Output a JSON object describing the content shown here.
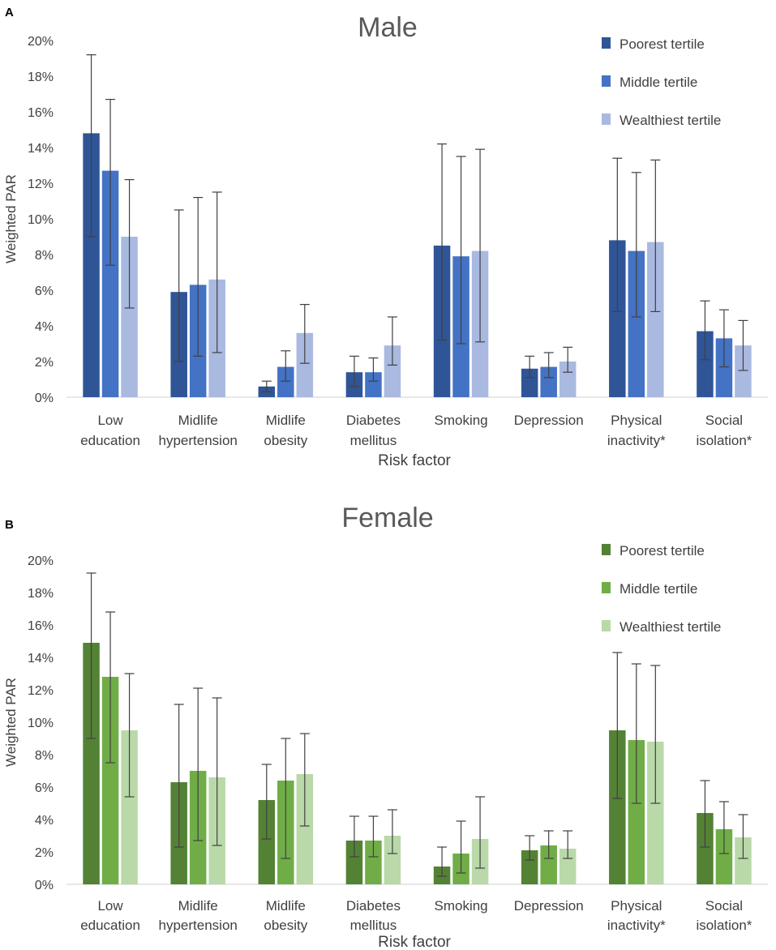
{
  "chart_data": [
    {
      "type": "bar",
      "panel_label": "A",
      "title": "Male",
      "xlabel": "Risk factor",
      "ylabel": "Weighted PAR",
      "ylim": [
        0,
        20
      ],
      "yticks": [
        "0%",
        "2%",
        "4%",
        "6%",
        "8%",
        "10%",
        "12%",
        "14%",
        "16%",
        "18%",
        "20%"
      ],
      "grid": false,
      "legend_position": "top-right",
      "categories": [
        [
          "Low",
          "education"
        ],
        [
          "Midlife",
          "hypertension"
        ],
        [
          "Midlife",
          "obesity"
        ],
        [
          "Diabetes",
          "mellitus"
        ],
        [
          "Smoking"
        ],
        [
          "Depression"
        ],
        [
          "Physical",
          "inactivity*"
        ],
        [
          "Social",
          "isolation*"
        ]
      ],
      "series": [
        {
          "name": "Poorest tertile",
          "color": "#2f5597",
          "values": [
            14.8,
            5.9,
            0.6,
            1.4,
            8.5,
            1.6,
            8.8,
            3.7
          ],
          "err_low": [
            9.0,
            2.0,
            0.3,
            0.6,
            3.2,
            1.1,
            4.8,
            2.1
          ],
          "err_high": [
            19.2,
            10.5,
            0.9,
            2.3,
            14.2,
            2.3,
            13.4,
            5.4
          ]
        },
        {
          "name": "Middle tertile",
          "color": "#4472c4",
          "values": [
            12.7,
            6.3,
            1.7,
            1.4,
            7.9,
            1.7,
            8.2,
            3.3
          ],
          "err_low": [
            7.4,
            2.3,
            0.9,
            0.9,
            3.0,
            1.1,
            4.5,
            1.7
          ],
          "err_high": [
            16.7,
            11.2,
            2.6,
            2.2,
            13.5,
            2.5,
            12.6,
            4.9
          ]
        },
        {
          "name": "Wealthiest tertile",
          "color": "#a9b9e0",
          "values": [
            9.0,
            6.6,
            3.6,
            2.9,
            8.2,
            2.0,
            8.7,
            2.9
          ],
          "err_low": [
            5.0,
            2.5,
            1.9,
            1.8,
            3.1,
            1.4,
            4.8,
            1.5
          ],
          "err_high": [
            12.2,
            11.5,
            5.2,
            4.5,
            13.9,
            2.8,
            13.3,
            4.3
          ]
        }
      ]
    },
    {
      "type": "bar",
      "panel_label": "B",
      "title": "Female",
      "xlabel": "Risk factor",
      "ylabel": "Weighted PAR",
      "ylim": [
        0,
        20
      ],
      "yticks": [
        "0%",
        "2%",
        "4%",
        "6%",
        "8%",
        "10%",
        "12%",
        "14%",
        "16%",
        "18%",
        "20%"
      ],
      "grid": false,
      "legend_position": "top-right",
      "categories": [
        [
          "Low",
          "education"
        ],
        [
          "Midlife",
          "hypertension"
        ],
        [
          "Midlife",
          "obesity"
        ],
        [
          "Diabetes",
          "mellitus"
        ],
        [
          "Smoking"
        ],
        [
          "Depression"
        ],
        [
          "Physical",
          "inactivity*"
        ],
        [
          "Social",
          "isolation*"
        ]
      ],
      "series": [
        {
          "name": "Poorest tertile",
          "color": "#548235",
          "values": [
            14.9,
            6.3,
            5.2,
            2.7,
            1.1,
            2.1,
            9.5,
            4.4
          ],
          "err_low": [
            9.0,
            2.3,
            2.8,
            1.7,
            0.5,
            1.5,
            5.3,
            2.3
          ],
          "err_high": [
            19.2,
            11.1,
            7.4,
            4.2,
            2.3,
            3.0,
            14.3,
            6.4
          ]
        },
        {
          "name": "Middle tertile",
          "color": "#70ad47",
          "values": [
            12.8,
            7.0,
            6.4,
            2.7,
            1.9,
            2.4,
            8.9,
            3.4
          ],
          "err_low": [
            7.5,
            2.7,
            1.6,
            1.7,
            0.7,
            1.6,
            5.0,
            1.9
          ],
          "err_high": [
            16.8,
            12.1,
            9.0,
            4.2,
            3.9,
            3.3,
            13.6,
            5.1
          ]
        },
        {
          "name": "Wealthiest tertile",
          "color": "#b9d9a9",
          "values": [
            9.5,
            6.6,
            6.8,
            3.0,
            2.8,
            2.2,
            8.8,
            2.9
          ],
          "err_low": [
            5.4,
            2.4,
            3.6,
            1.9,
            1.0,
            1.6,
            5.0,
            1.6
          ],
          "err_high": [
            13.0,
            11.5,
            9.3,
            4.6,
            5.4,
            3.3,
            13.5,
            4.3
          ]
        }
      ]
    }
  ]
}
